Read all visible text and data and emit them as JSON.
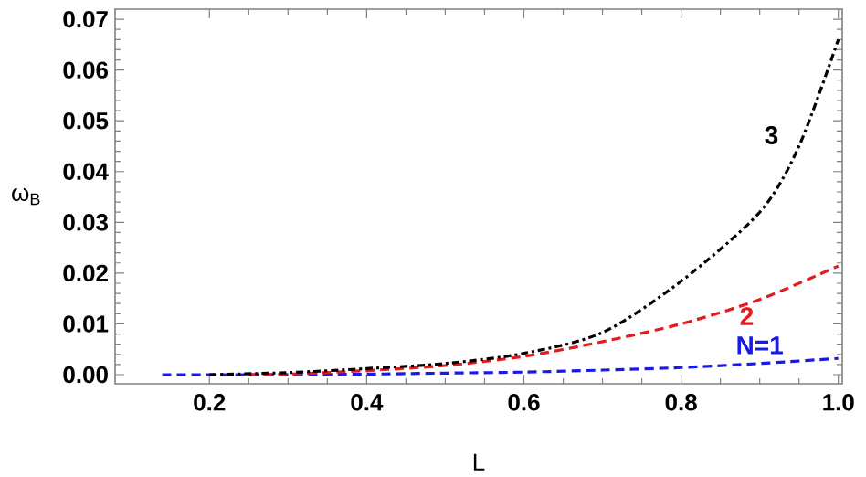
{
  "chart_data": {
    "type": "line",
    "xlabel": "L",
    "ylabel": "ω$_{B}$",
    "xlim": [
      0.08,
      1.005
    ],
    "ylim": [
      -0.0018,
      0.072
    ],
    "xticks": [
      {
        "value": 0.2,
        "label": "0.2"
      },
      {
        "value": 0.4,
        "label": "0.4"
      },
      {
        "value": 0.6,
        "label": "0.6"
      },
      {
        "value": 0.8,
        "label": "0.8"
      },
      {
        "value": 1.0,
        "label": "1.0"
      }
    ],
    "yticks": [
      {
        "value": 0,
        "label": "0.00"
      },
      {
        "value": 0.01,
        "label": "0.01"
      },
      {
        "value": 0.02,
        "label": "0.02"
      },
      {
        "value": 0.03,
        "label": "0.03"
      },
      {
        "value": 0.04,
        "label": "0.04"
      },
      {
        "value": 0.05,
        "label": "0.05"
      },
      {
        "value": 0.06,
        "label": "0.06"
      },
      {
        "value": 0.07,
        "label": "0.07"
      }
    ],
    "grid": false,
    "legend": false,
    "marker": "none",
    "series": [
      {
        "name": "N=1",
        "color": "#1a1ae6",
        "line_style": "dashed",
        "x": [
          0.14,
          0.2,
          0.3,
          0.4,
          0.5,
          0.6,
          0.7,
          0.8,
          0.9,
          1.0
        ],
        "values": [
          0,
          0,
          0,
          0.0001,
          0.0003,
          0.0005,
          0.0009,
          0.0014,
          0.0022,
          0.0032
        ]
      },
      {
        "name": "2",
        "color": "#e61a1a",
        "line_style": "dashed",
        "x": [
          0.25,
          0.3,
          0.4,
          0.5,
          0.6,
          0.7,
          0.8,
          0.9,
          1.0
        ],
        "values": [
          0,
          0.0001,
          0.0008,
          0.0018,
          0.0036,
          0.0065,
          0.01,
          0.0148,
          0.0214
        ]
      },
      {
        "name": "3",
        "color": "#000000",
        "line_style": "dashdot",
        "x": [
          0.2,
          0.3,
          0.4,
          0.5,
          0.6,
          0.7,
          0.8,
          0.9,
          0.95,
          1.0
        ],
        "values": [
          0,
          0.0004,
          0.0012,
          0.0022,
          0.0042,
          0.0083,
          0.0184,
          0.032,
          0.045,
          0.066
        ]
      }
    ]
  }
}
